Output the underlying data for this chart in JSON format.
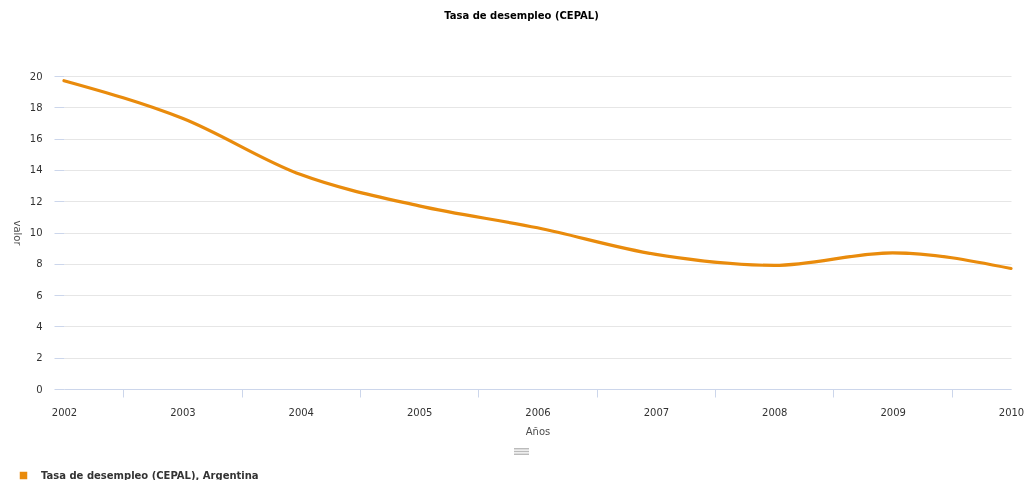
{
  "chart_data": {
    "type": "line",
    "title": "Tasa de desempleo (CEPAL)",
    "xlabel": "Años",
    "ylabel": "valor",
    "x": [
      2002,
      2003,
      2004,
      2005,
      2006,
      2007,
      2008,
      2009,
      2010
    ],
    "series": [
      {
        "name": "Tasa de desempleo (CEPAL), Argentina",
        "color": "#e98b0c",
        "values": [
          19.7,
          17.3,
          13.7,
          11.7,
          10.3,
          8.6,
          7.9,
          8.7,
          7.7
        ]
      }
    ],
    "xlim": [
      2002,
      2010
    ],
    "xticks": [
      2002,
      {
        "value": 2002.5,
        "label": null
      },
      2003,
      {
        "value": 2003.5,
        "label": null
      },
      2004,
      {
        "value": 2004.5,
        "label": null
      },
      2005,
      {
        "value": 2005.5,
        "label": null
      },
      2006,
      {
        "value": 2006.5,
        "label": null
      },
      2007,
      {
        "value": 2007.5,
        "label": null
      },
      2008,
      {
        "value": 2008.5,
        "label": null
      },
      2009,
      {
        "value": 2009.5,
        "label": null
      },
      2010
    ],
    "ylim": [
      0,
      20
    ],
    "yticks": [
      0,
      2,
      4,
      6,
      8,
      10,
      12,
      14,
      16,
      18,
      20
    ],
    "grid": "y",
    "legend": "bottom left",
    "line_style": "solid"
  }
}
